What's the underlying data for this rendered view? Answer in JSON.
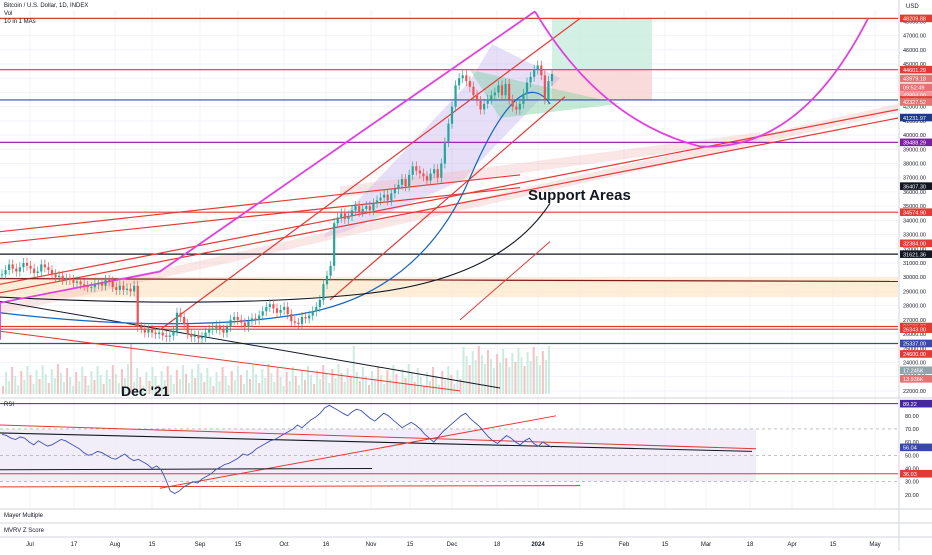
{
  "header": {
    "symbol_line": "Bitcoin / U.S. Dollar, 1D, INDEX",
    "volume_label": "Vol",
    "mas_label": "10 in 1 MAs",
    "currency": "USD"
  },
  "annotations": {
    "support_areas": "Support Areas",
    "dec_21": "Dec '21"
  },
  "panes": {
    "rsi_label": "RSI",
    "mayer_label": "Mayer Multiple",
    "mvrv_label": "MVRV Z Score"
  },
  "chart_data": [
    {
      "type": "candlestick",
      "title": "Bitcoin / U.S. Dollar, 1D, INDEX",
      "x_ticks": [
        "Jul",
        "17",
        "Aug",
        "15",
        "Sep",
        "15",
        "Oct",
        "16",
        "Nov",
        "15",
        "Dec",
        "18",
        "2024",
        "15",
        "Feb",
        "15",
        "Mar",
        "18",
        "Apr",
        "15",
        "May"
      ],
      "y_ticks": [
        22000,
        23000,
        24000,
        25000,
        26000,
        27000,
        28000,
        29000,
        30000,
        31000,
        32000,
        33000,
        34000,
        35000,
        36000,
        37000,
        38000,
        39000,
        40000,
        41000,
        42000,
        43000,
        44000,
        45000,
        46000,
        47000,
        48000
      ],
      "ylim": [
        21500,
        48800
      ],
      "price_labels": [
        {
          "value": 48209.88,
          "label": "48209.88",
          "color": "#e53935"
        },
        {
          "value": 44601.29,
          "label": "44601.29",
          "color": "#e53935"
        },
        {
          "value": 43979.18,
          "label": "43979.18",
          "color": "#e57373"
        },
        {
          "value": 43352.4,
          "label": "09:52:49",
          "color": "#e57373"
        },
        {
          "value": 42804.0,
          "label": "42804.00",
          "color": "#ef9a9a"
        },
        {
          "value": 42472.61,
          "label": "42472.61",
          "color": "#e53935"
        },
        {
          "value": 42327.52,
          "label": "42327.52",
          "color": "#e57373"
        },
        {
          "value": 41231.97,
          "label": "41231.97",
          "color": "#1e3a8a"
        },
        {
          "value": 39488.29,
          "label": "39488.29",
          "color": "#7b1fa2"
        },
        {
          "value": 36407.3,
          "label": "36407.30",
          "color": "#131722"
        },
        {
          "value": 34574.9,
          "label": "34574.90",
          "color": "#e53935"
        },
        {
          "value": 32384.0,
          "label": "32384.00",
          "color": "#e53935"
        },
        {
          "value": 31621.36,
          "label": "31621.36",
          "color": "#131722"
        },
        {
          "value": 26529.37,
          "label": "26529.37",
          "color": "#e53935"
        },
        {
          "value": 26343.0,
          "label": "26343.00",
          "color": "#e53935"
        },
        {
          "value": 25337.0,
          "label": "25337.00",
          "color": "#3949ab"
        },
        {
          "value": 24600.0,
          "label": "24600.00",
          "color": "#e53935"
        },
        {
          "value": 23450.0,
          "label": "17.245K",
          "color": "#90a4ae"
        },
        {
          "value": 22850.0,
          "label": "13.936K",
          "color": "#e57373"
        }
      ],
      "horizontal_levels": [
        48209.88,
        44601.29,
        42472.61,
        39488.29,
        34574.9,
        31621.36,
        26529.37,
        26343.0,
        25337.0
      ],
      "candles_close": [
        30200,
        30500,
        30900,
        30600,
        30400,
        30700,
        31000,
        30800,
        30600,
        30300,
        30400,
        30900,
        30700,
        30500,
        30200,
        30000,
        30100,
        29800,
        29900,
        29800,
        29600,
        29700,
        29500,
        29400,
        29300,
        29300,
        29500,
        29600,
        29400,
        29800,
        29700,
        29300,
        29100,
        29400,
        29100,
        29200,
        29000,
        29400,
        26500,
        26400,
        26100,
        26300,
        26100,
        26000,
        26100,
        25900,
        25800,
        25900,
        26200,
        27500,
        27200,
        26700,
        26000,
        25800,
        25900,
        25700,
        25800,
        26100,
        26300,
        26400,
        26600,
        26300,
        26100,
        26500,
        27000,
        27200,
        27000,
        26800,
        26500,
        26900,
        27100,
        27000,
        27300,
        27600,
        27900,
        28100,
        27800,
        27500,
        27700,
        27900,
        27400,
        26900,
        26800,
        26700,
        27200,
        27100,
        27300,
        27600,
        27900,
        28400,
        29500,
        30100,
        30800,
        33800,
        34200,
        34500,
        34100,
        34300,
        34700,
        35000,
        34600,
        34800,
        35000,
        34700,
        35200,
        35400,
        35600,
        35800,
        35400,
        35900,
        36200,
        36500,
        36900,
        36400,
        37200,
        37800,
        37500,
        37300,
        37100,
        36800,
        37300,
        37600,
        37000,
        38000,
        39500,
        40800,
        42000,
        43500,
        44000,
        44200,
        43800,
        43400,
        42800,
        42400,
        41800,
        42200,
        42500,
        42800,
        43000,
        43500,
        42800,
        43600,
        42500,
        42000,
        41800,
        42200,
        42900,
        43700,
        44100,
        44600,
        44900,
        44200,
        42500,
        43800,
        44300
      ]
    },
    {
      "type": "line",
      "title": "RSI",
      "y_ticks": [
        20,
        30,
        40,
        50,
        60,
        70,
        80
      ],
      "ylim": [
        10,
        92
      ],
      "price_labels": [
        {
          "value": 89.22,
          "label": "89.22",
          "color": "#4527a0"
        },
        {
          "value": 56.04,
          "label": "56.04",
          "color": "#3949ab"
        },
        {
          "value": 36.03,
          "label": "36.03",
          "color": "#e53935"
        }
      ],
      "values": [
        66,
        65,
        63,
        62,
        64,
        63,
        60,
        58,
        61,
        59,
        57,
        58,
        60,
        62,
        61,
        59,
        57,
        55,
        52,
        50,
        51,
        53,
        52,
        50,
        48,
        47,
        49,
        51,
        48,
        46,
        47,
        45,
        43,
        40,
        42,
        39,
        32,
        23,
        21,
        23,
        26,
        28,
        30,
        29,
        32,
        34,
        36,
        39,
        41,
        43,
        44,
        46,
        48,
        51,
        50,
        52,
        55,
        57,
        59,
        61,
        62,
        64,
        66,
        68,
        70,
        73,
        71,
        74,
        77,
        79,
        82,
        86,
        88,
        86,
        84,
        82,
        80,
        83,
        85,
        84,
        81,
        78,
        76,
        79,
        82,
        80,
        77,
        74,
        71,
        73,
        75,
        73,
        70,
        66,
        63,
        60,
        64,
        68,
        71,
        74,
        77,
        80,
        82,
        78,
        75,
        72,
        68,
        64,
        61,
        59,
        62,
        65,
        63,
        60,
        58,
        61,
        63,
        59,
        57,
        60,
        58,
        56
      ]
    }
  ]
}
